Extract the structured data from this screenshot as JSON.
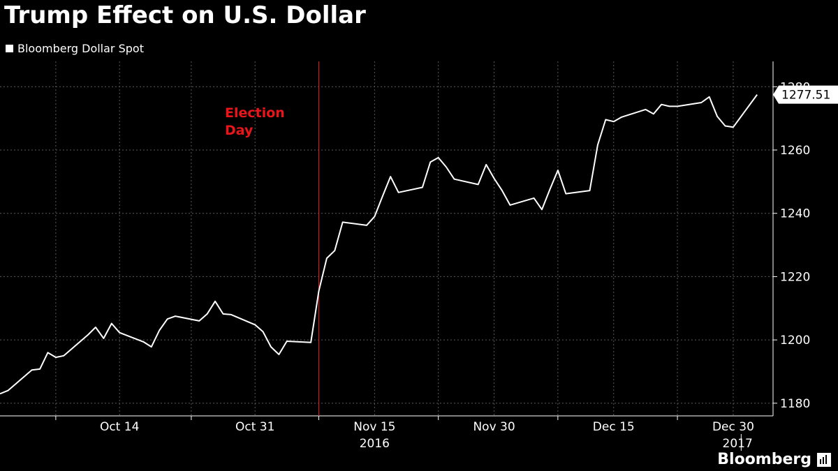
{
  "chart_data": {
    "type": "line",
    "title": "Trump Effect on U.S. Dollar",
    "series": [
      {
        "name": "Bloomberg Dollar Spot",
        "color": "#ffffff",
        "points": [
          [
            "2016-09-29",
            1183.0
          ],
          [
            "2016-09-30",
            1184.0
          ],
          [
            "2016-10-03",
            1190.5
          ],
          [
            "2016-10-04",
            1190.8
          ],
          [
            "2016-10-05",
            1196.0
          ],
          [
            "2016-10-06",
            1194.5
          ],
          [
            "2016-10-07",
            1195.0
          ],
          [
            "2016-10-10",
            1201.5
          ],
          [
            "2016-10-11",
            1204.0
          ],
          [
            "2016-10-12",
            1200.5
          ],
          [
            "2016-10-13",
            1205.2
          ],
          [
            "2016-10-14",
            1202.3
          ],
          [
            "2016-10-17",
            1199.4
          ],
          [
            "2016-10-18",
            1197.8
          ],
          [
            "2016-10-19",
            1203.0
          ],
          [
            "2016-10-20",
            1206.6
          ],
          [
            "2016-10-21",
            1207.5
          ],
          [
            "2016-10-24",
            1206.0
          ],
          [
            "2016-10-25",
            1208.2
          ],
          [
            "2016-10-26",
            1212.2
          ],
          [
            "2016-10-27",
            1208.2
          ],
          [
            "2016-10-28",
            1208.0
          ],
          [
            "2016-10-31",
            1204.8
          ],
          [
            "2016-11-01",
            1202.6
          ],
          [
            "2016-11-02",
            1197.8
          ],
          [
            "2016-11-03",
            1195.4
          ],
          [
            "2016-11-04",
            1199.6
          ],
          [
            "2016-11-07",
            1199.2
          ],
          [
            "2016-11-08",
            1215.4
          ],
          [
            "2016-11-09",
            1225.8
          ],
          [
            "2016-11-10",
            1228.2
          ],
          [
            "2016-11-11",
            1237.2
          ],
          [
            "2016-11-14",
            1236.2
          ],
          [
            "2016-11-15",
            1239.0
          ],
          [
            "2016-11-16",
            1245.4
          ],
          [
            "2016-11-17",
            1251.6
          ],
          [
            "2016-11-18",
            1246.6
          ],
          [
            "2016-11-21",
            1248.2
          ],
          [
            "2016-11-22",
            1256.2
          ],
          [
            "2016-11-23",
            1257.6
          ],
          [
            "2016-11-24",
            1254.6
          ],
          [
            "2016-11-25",
            1250.8
          ],
          [
            "2016-11-28",
            1249.1
          ],
          [
            "2016-11-29",
            1255.4
          ],
          [
            "2016-11-30",
            1251.0
          ],
          [
            "2016-12-01",
            1247.2
          ],
          [
            "2016-12-02",
            1242.6
          ],
          [
            "2016-12-05",
            1244.8
          ],
          [
            "2016-12-06",
            1241.2
          ],
          [
            "2016-12-07",
            1247.6
          ],
          [
            "2016-12-08",
            1253.6
          ],
          [
            "2016-12-09",
            1246.2
          ],
          [
            "2016-12-12",
            1247.2
          ],
          [
            "2016-12-13",
            1261.6
          ],
          [
            "2016-12-14",
            1269.6
          ],
          [
            "2016-12-15",
            1269.0
          ],
          [
            "2016-12-16",
            1270.4
          ],
          [
            "2016-12-19",
            1272.8
          ],
          [
            "2016-12-20",
            1271.4
          ],
          [
            "2016-12-21",
            1274.4
          ],
          [
            "2016-12-22",
            1273.8
          ],
          [
            "2016-12-23",
            1273.8
          ],
          [
            "2016-12-26",
            1275.0
          ],
          [
            "2016-12-27",
            1276.8
          ],
          [
            "2016-12-28",
            1270.6
          ],
          [
            "2016-12-29",
            1267.6
          ],
          [
            "2016-12-30",
            1267.2
          ],
          [
            "2017-01-02",
            1277.51
          ]
        ]
      }
    ],
    "last_value_label": "1277.51",
    "ylim": [
      1176,
      1288
    ],
    "y_ticks": [
      1180,
      1200,
      1220,
      1240,
      1260,
      1280
    ],
    "y_tick_labels": [
      "1180",
      "1200",
      "1220",
      "1240",
      "1260",
      "1280"
    ],
    "x_ticks": [
      {
        "date": "2016-10-14",
        "label": "Oct 14"
      },
      {
        "date": "2016-10-31",
        "label": "Oct 31"
      },
      {
        "date": "2016-11-15",
        "label": "Nov 15"
      },
      {
        "date": "2016-11-30",
        "label": "Nov 30"
      },
      {
        "date": "2016-12-15",
        "label": "Dec 15"
      },
      {
        "date": "2016-12-30",
        "label": "Dec 30"
      }
    ],
    "x_tick_marks": [
      "2016-10-06",
      "2016-10-23",
      "2016-11-08",
      "2016-11-23",
      "2016-12-08",
      "2016-12-23"
    ],
    "x_year_labels": [
      {
        "date": "2016-11-15",
        "label": "2016"
      },
      {
        "date": "2017-01-02",
        "label": "2017"
      }
    ],
    "xlim": [
      "2016-09-29",
      "2017-01-04"
    ],
    "annotation": {
      "label_line1": "Election",
      "label_line2": "Day",
      "date": "2016-11-08",
      "color": "#e8151b"
    },
    "grid": true,
    "y_axis_side": "right",
    "legend_position": "top-left"
  },
  "legend": {
    "label": "Bloomberg Dollar Spot"
  },
  "brand": {
    "name": "Bloomberg"
  }
}
